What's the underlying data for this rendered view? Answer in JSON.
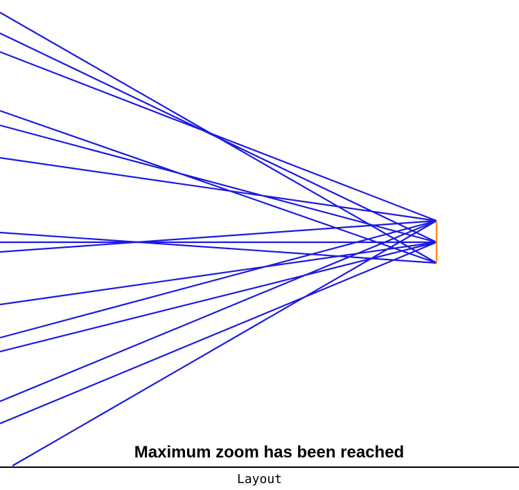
{
  "graph": {
    "edge_color": "#1a1adf",
    "highlight_color": "#ff8c1a",
    "edges_note_free": true
  },
  "status_message": "Maximum zoom has been reached",
  "panel_label": "Layout"
}
